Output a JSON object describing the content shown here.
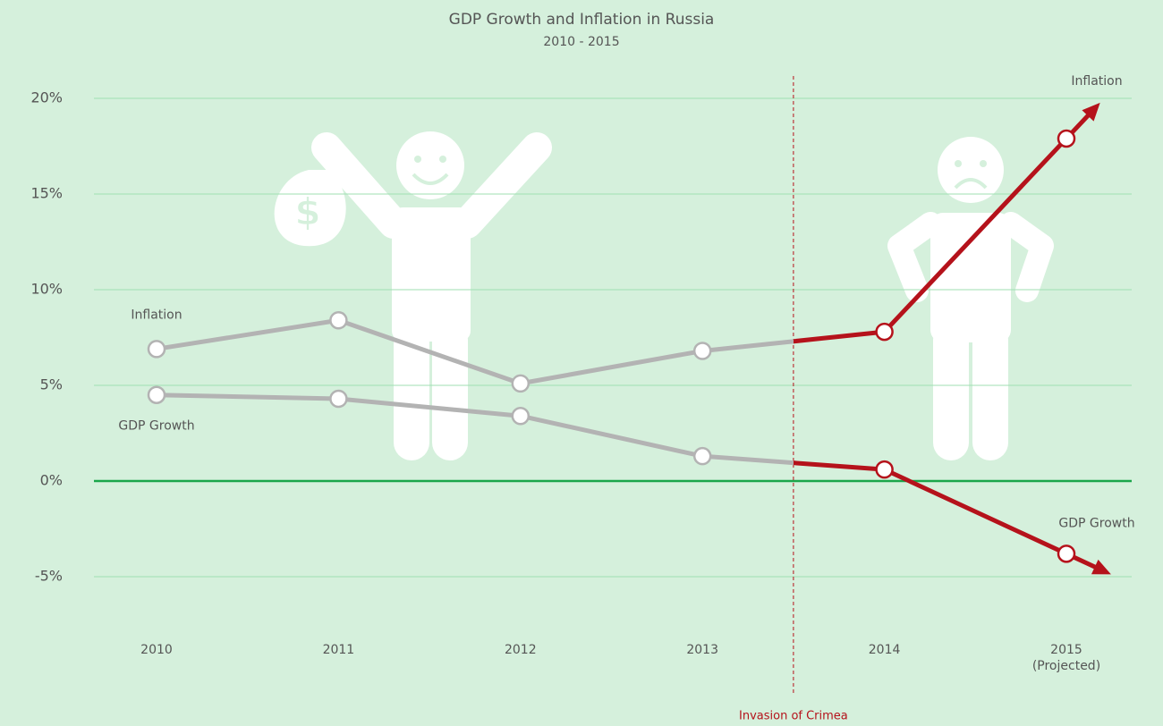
{
  "chart_data": {
    "type": "line",
    "title": "GDP Growth and Inflation in Russia",
    "subtitle": "2010 - 2015",
    "categories": [
      "2010",
      "2011",
      "2012",
      "2013",
      "2014",
      "2015 (Projected)"
    ],
    "series": [
      {
        "name": "Inflation",
        "color": "#b5121b",
        "values": [
          6.9,
          8.4,
          5.1,
          6.8,
          7.8,
          17.9
        ]
      },
      {
        "name": "GDP Growth",
        "color": "#b5121b",
        "values": [
          4.5,
          4.3,
          3.4,
          1.3,
          0.6,
          -3.8
        ]
      }
    ],
    "past_color": "#b3b3b3",
    "annotation": "Invasion of Crimea",
    "ylim": [
      -5,
      20
    ],
    "yticks": [
      {
        "value": -5,
        "label": "-5%"
      },
      {
        "value": 0,
        "label": "0%"
      },
      {
        "value": 5,
        "label": "5%"
      },
      {
        "value": 10,
        "label": "10%"
      },
      {
        "value": 15,
        "label": "15%"
      },
      {
        "value": 20,
        "label": "20%"
      }
    ],
    "grid": true
  }
}
